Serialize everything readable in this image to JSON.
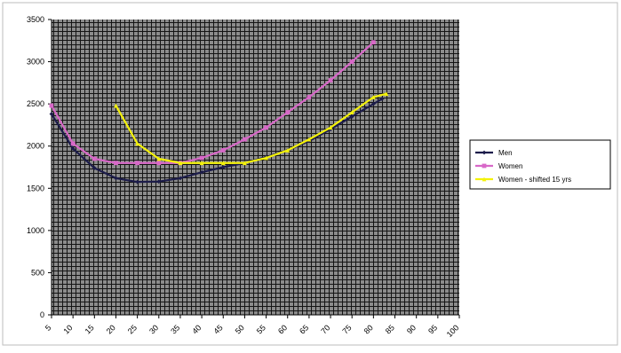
{
  "chart_data": {
    "type": "line",
    "title": "",
    "xlabel": "",
    "ylabel": "",
    "xlim": [
      5,
      100
    ],
    "ylim": [
      0,
      3500
    ],
    "x_ticks": [
      "5",
      "10",
      "15",
      "20",
      "25",
      "30",
      "35",
      "40",
      "45",
      "50",
      "55",
      "60",
      "65",
      "70",
      "75",
      "80",
      "85",
      "90",
      "95",
      "100"
    ],
    "y_ticks": [
      "0",
      "500",
      "1000",
      "1500",
      "2000",
      "2500",
      "3000",
      "3500"
    ],
    "grid": "dense dark vertical and horizontal gridlines",
    "legend": "right",
    "series": [
      {
        "name": "Men",
        "color": "#1c1c4a",
        "marker": "diamond",
        "x": [
          5,
          10,
          15,
          20,
          25,
          30,
          35,
          40,
          45,
          50,
          55,
          60,
          65,
          70,
          75,
          80,
          82
        ],
        "values": [
          2380,
          1970,
          1740,
          1620,
          1575,
          1580,
          1620,
          1690,
          1750,
          1800,
          1870,
          1950,
          2060,
          2200,
          2350,
          2500,
          2560
        ]
      },
      {
        "name": "Women",
        "color": "#d868c8",
        "marker": "square",
        "x": [
          5,
          10,
          15,
          20,
          25,
          30,
          35,
          40,
          45,
          50,
          55,
          60,
          65,
          70,
          75,
          80
        ],
        "values": [
          2480,
          2030,
          1850,
          1800,
          1800,
          1800,
          1800,
          1860,
          1950,
          2080,
          2220,
          2400,
          2580,
          2780,
          3000,
          3230
        ]
      },
      {
        "name": "Women - shifted 15 yrs",
        "color": "#f4f20a",
        "marker": "triangle",
        "x": [
          20,
          25,
          30,
          35,
          40,
          45,
          50,
          55,
          60,
          65,
          70,
          75,
          80,
          83
        ],
        "values": [
          2480,
          2030,
          1850,
          1800,
          1800,
          1800,
          1800,
          1860,
          1950,
          2080,
          2220,
          2400,
          2580,
          2620
        ]
      }
    ]
  }
}
